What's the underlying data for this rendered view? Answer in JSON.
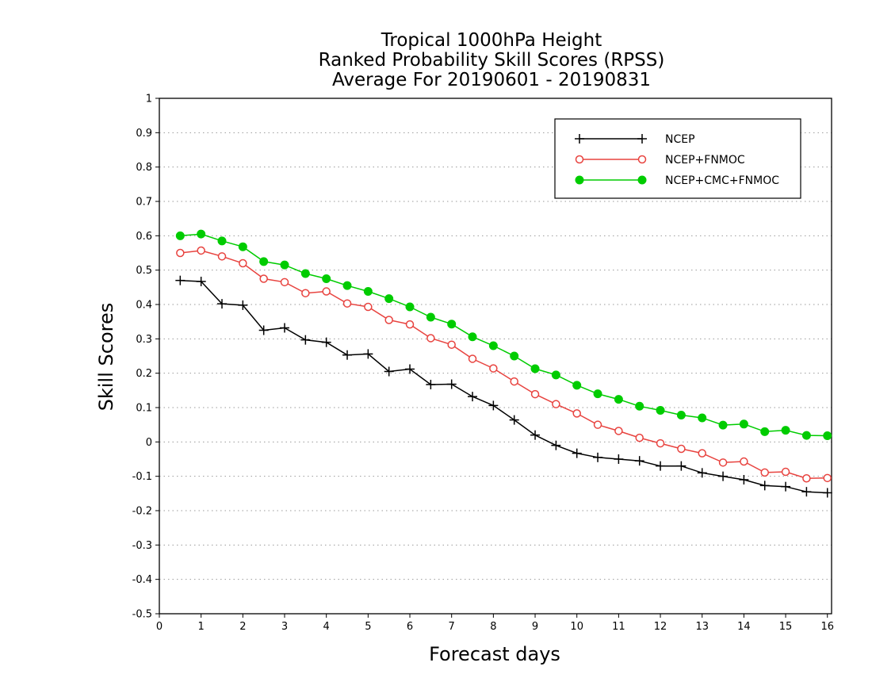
{
  "chart_data": {
    "type": "line",
    "title": [
      "Tropical 1000hPa Height",
      "Ranked Probability Skill Scores (RPSS)",
      "Average For 20190601 - 20190831"
    ],
    "xlabel": "Forecast days",
    "ylabel": "Skill Scores",
    "xlim": [
      0,
      16.1
    ],
    "ylim": [
      -0.5,
      1
    ],
    "xticks": [
      0,
      1,
      2,
      3,
      4,
      5,
      6,
      7,
      8,
      9,
      10,
      11,
      12,
      13,
      14,
      15,
      16
    ],
    "yticks": [
      -0.5,
      -0.4,
      -0.3,
      -0.2,
      -0.1,
      0,
      0.1,
      0.2,
      0.3,
      0.4,
      0.5,
      0.6,
      0.7,
      0.8,
      0.9,
      1
    ],
    "ytick_labels": [
      "-0.5",
      "-0.4",
      "-0.3",
      "-0.2",
      "-0.1",
      "0",
      "0.1",
      "0.2",
      "0.3",
      "0.4",
      "0.5",
      "0.6",
      "0.7",
      "0.8",
      "0.9",
      "1"
    ],
    "grid": "horizontal-dotted",
    "legend_position": "top-right",
    "x": [
      0.5,
      1,
      1.5,
      2,
      2.5,
      3,
      3.5,
      4,
      4.5,
      5,
      5.5,
      6,
      6.5,
      7,
      7.5,
      8,
      8.5,
      9,
      9.5,
      10,
      10.5,
      11,
      11.5,
      12,
      12.5,
      13,
      13.5,
      14,
      14.5,
      15,
      15.5,
      16
    ],
    "series": [
      {
        "name": "NCEP",
        "color": "#000000",
        "marker": "plus",
        "values": [
          0.47,
          0.467,
          0.402,
          0.398,
          0.325,
          0.332,
          0.297,
          0.29,
          0.253,
          0.256,
          0.205,
          0.212,
          0.167,
          0.168,
          0.132,
          0.106,
          0.064,
          0.02,
          -0.01,
          -0.033,
          -0.045,
          -0.05,
          -0.055,
          -0.07,
          -0.07,
          -0.09,
          -0.1,
          -0.11,
          -0.127,
          -0.13,
          -0.145,
          -0.148
        ]
      },
      {
        "name": "NCEP+FNMOC",
        "color": "#e8433f",
        "marker": "open-circle",
        "values": [
          0.55,
          0.557,
          0.54,
          0.52,
          0.475,
          0.465,
          0.433,
          0.438,
          0.403,
          0.393,
          0.355,
          0.342,
          0.302,
          0.283,
          0.242,
          0.214,
          0.176,
          0.139,
          0.11,
          0.083,
          0.05,
          0.032,
          0.012,
          -0.004,
          -0.02,
          -0.033,
          -0.06,
          -0.057,
          -0.089,
          -0.087,
          -0.106,
          -0.105
        ]
      },
      {
        "name": "NCEP+CMC+FNMOC",
        "color": "#00cc00",
        "marker": "filled-circle",
        "values": [
          0.6,
          0.605,
          0.585,
          0.568,
          0.525,
          0.515,
          0.49,
          0.475,
          0.455,
          0.438,
          0.417,
          0.393,
          0.363,
          0.343,
          0.306,
          0.28,
          0.25,
          0.213,
          0.195,
          0.165,
          0.14,
          0.124,
          0.104,
          0.092,
          0.078,
          0.07,
          0.049,
          0.052,
          0.03,
          0.034,
          0.019,
          0.018
        ]
      }
    ]
  }
}
